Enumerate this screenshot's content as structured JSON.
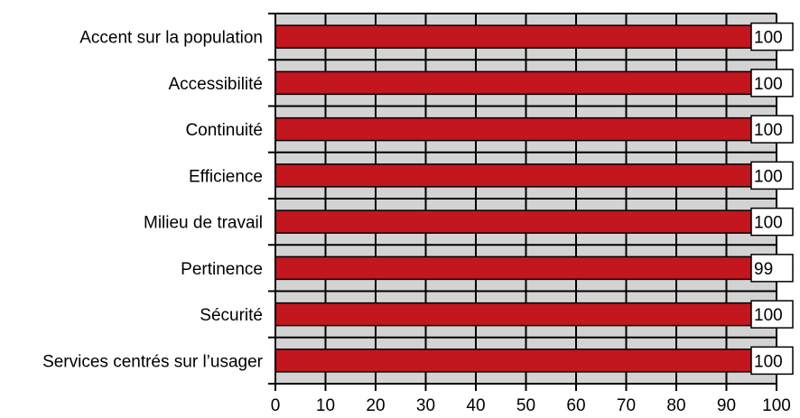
{
  "chart_data": {
    "type": "bar",
    "orientation": "horizontal",
    "categories": [
      "Accent sur la population",
      "Accessibilité",
      "Continuité",
      "Efficience",
      "Milieu de travail",
      "Pertinence",
      "Sécurité",
      "Services centrés sur l’usager"
    ],
    "values": [
      100,
      100,
      100,
      100,
      100,
      99,
      100,
      100
    ],
    "data_labels": [
      "100",
      "100",
      "100",
      "100",
      "100",
      "99",
      "100",
      "100"
    ],
    "xlim": [
      0,
      100
    ],
    "x_ticks": [
      "0",
      "10",
      "20",
      "30",
      "40",
      "50",
      "60",
      "70",
      "80",
      "90",
      "100"
    ],
    "title": "",
    "xlabel": "",
    "ylabel": "",
    "grid": true,
    "legend": "none",
    "colors": {
      "bar": "#c3161e",
      "plot_background": "#d3d3d3",
      "grid_line": "#000000",
      "axis": "#000000",
      "label_box": "#ffffff"
    }
  }
}
